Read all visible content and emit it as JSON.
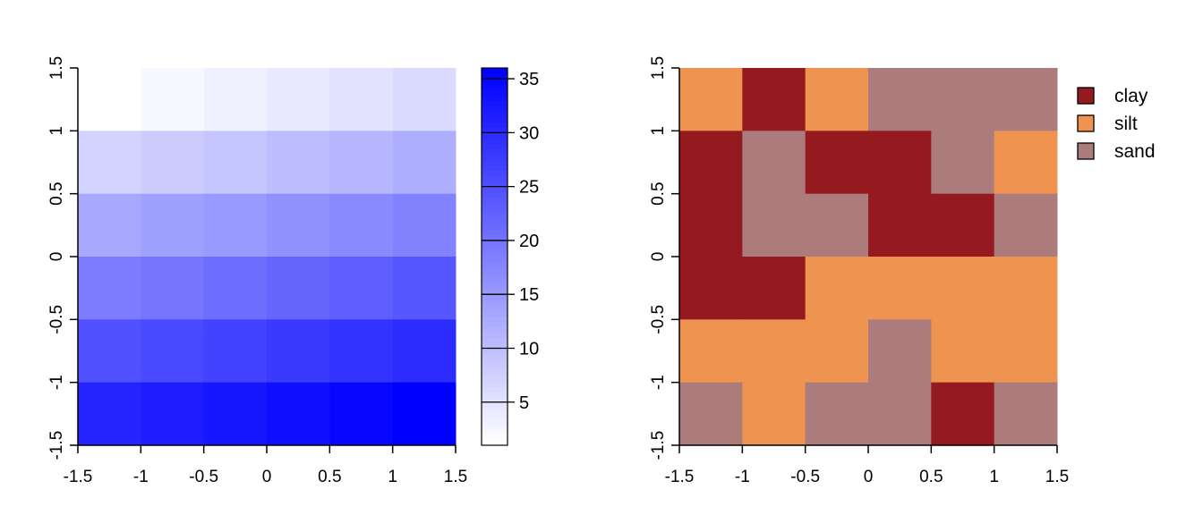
{
  "chart_data": [
    {
      "type": "heatmap",
      "x_ticks": [
        "-1.5",
        "-1",
        "-0.5",
        "0",
        "0.5",
        "1",
        "1.5"
      ],
      "y_ticks": [
        "-1.5",
        "-1",
        "-0.5",
        "0",
        "0.5",
        "1",
        "1.5"
      ],
      "xlim": [
        -1.5,
        1.5
      ],
      "ylim": [
        -1.5,
        1.5
      ],
      "grid": false,
      "values_top_to_bottom": [
        [
          1,
          2,
          3,
          4,
          5,
          6
        ],
        [
          7,
          8,
          9,
          10,
          11,
          12
        ],
        [
          13,
          14,
          15,
          16,
          17,
          18
        ],
        [
          19,
          20,
          21,
          22,
          23,
          24
        ],
        [
          25,
          26,
          27,
          28,
          29,
          30
        ],
        [
          31,
          32,
          33,
          34,
          35,
          36
        ]
      ],
      "colorbar": {
        "range": [
          1,
          36
        ],
        "ticks": [
          "5",
          "10",
          "15",
          "20",
          "25",
          "30",
          "35"
        ],
        "low_color": "#ffffff",
        "high_color": "#0000ff"
      }
    },
    {
      "type": "heatmap",
      "x_ticks": [
        "-1.5",
        "-1",
        "-0.5",
        "0",
        "0.5",
        "1",
        "1.5"
      ],
      "y_ticks": [
        "-1.5",
        "-1",
        "-0.5",
        "0",
        "0.5",
        "1",
        "1.5"
      ],
      "xlim": [
        -1.5,
        1.5
      ],
      "ylim": [
        -1.5,
        1.5
      ],
      "grid": false,
      "classes_top_to_bottom": [
        [
          "silt",
          "clay",
          "silt",
          "sand",
          "sand",
          "sand"
        ],
        [
          "clay",
          "sand",
          "clay",
          "clay",
          "sand",
          "silt"
        ],
        [
          "clay",
          "sand",
          "sand",
          "clay",
          "clay",
          "sand"
        ],
        [
          "clay",
          "clay",
          "silt",
          "silt",
          "silt",
          "silt"
        ],
        [
          "silt",
          "silt",
          "silt",
          "sand",
          "silt",
          "silt"
        ],
        [
          "sand",
          "silt",
          "sand",
          "sand",
          "clay",
          "sand"
        ]
      ],
      "legend": {
        "placement": "top-right",
        "items": [
          {
            "label": "clay",
            "color": "#941a20"
          },
          {
            "label": "silt",
            "color": "#ef9350"
          },
          {
            "label": "sand",
            "color": "#ac7b7b"
          }
        ]
      }
    }
  ]
}
